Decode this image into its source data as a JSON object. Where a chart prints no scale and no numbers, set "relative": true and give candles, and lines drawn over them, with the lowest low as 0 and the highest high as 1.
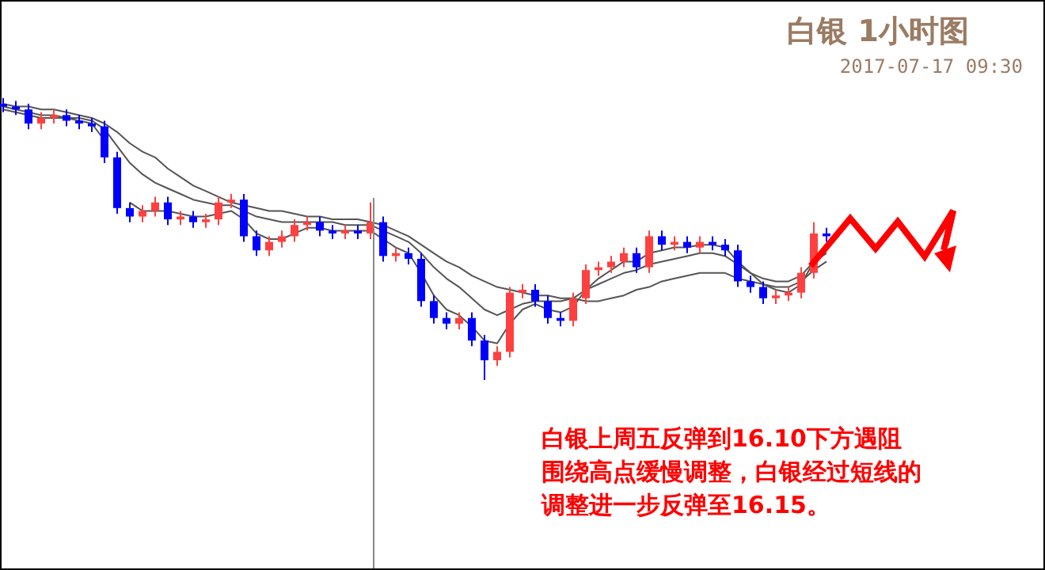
{
  "chart_data": {
    "type": "candlestick",
    "title": "白银 1小时图",
    "subtitle": "2017-07-17 09:30",
    "relative": true,
    "annotations": [
      "白银上周五反弹到16.10下方遇阻围绕高点缓慢调整，白银经过短线的调整进一步反弹至16.15。"
    ],
    "categories": [
      null,
      null,
      null,
      null,
      null,
      null,
      null,
      null,
      null,
      null,
      null,
      null,
      null,
      null,
      null,
      null,
      null,
      null,
      null,
      null,
      null,
      null,
      null,
      null,
      null,
      null,
      null,
      null,
      null,
      null,
      null,
      null,
      null,
      null,
      null,
      null,
      null,
      null,
      null,
      null,
      null,
      null,
      null,
      null,
      null,
      null,
      null,
      null,
      null,
      null,
      null,
      null,
      null,
      null,
      null,
      null,
      null,
      null,
      null,
      null,
      null,
      null,
      null,
      null,
      null,
      null
    ],
    "ohlc": [
      [
        0.98,
        1.0,
        0.95,
        0.97
      ],
      [
        0.97,
        0.99,
        0.94,
        0.96
      ],
      [
        0.96,
        0.98,
        0.89,
        0.91
      ],
      [
        0.91,
        0.95,
        0.89,
        0.93
      ],
      [
        0.93,
        0.96,
        0.91,
        0.94
      ],
      [
        0.94,
        0.96,
        0.9,
        0.92
      ],
      [
        0.92,
        0.94,
        0.89,
        0.91
      ],
      [
        0.91,
        0.93,
        0.88,
        0.9
      ],
      [
        0.9,
        0.92,
        0.77,
        0.79
      ],
      [
        0.79,
        0.81,
        0.59,
        0.61
      ],
      [
        0.61,
        0.63,
        0.56,
        0.58
      ],
      [
        0.58,
        0.62,
        0.56,
        0.6
      ],
      [
        0.6,
        0.65,
        0.58,
        0.63
      ],
      [
        0.63,
        0.65,
        0.55,
        0.57
      ],
      [
        0.57,
        0.6,
        0.55,
        0.58
      ],
      [
        0.58,
        0.6,
        0.54,
        0.56
      ],
      [
        0.56,
        0.59,
        0.54,
        0.57
      ],
      [
        0.57,
        0.65,
        0.55,
        0.63
      ],
      [
        0.63,
        0.66,
        0.61,
        0.64
      ],
      [
        0.64,
        0.66,
        0.49,
        0.51
      ],
      [
        0.51,
        0.53,
        0.44,
        0.46
      ],
      [
        0.46,
        0.51,
        0.44,
        0.49
      ],
      [
        0.49,
        0.53,
        0.47,
        0.51
      ],
      [
        0.51,
        0.57,
        0.49,
        0.55
      ],
      [
        0.55,
        0.58,
        0.53,
        0.56
      ],
      [
        0.56,
        0.58,
        0.51,
        0.53
      ],
      [
        0.53,
        0.55,
        0.5,
        0.52
      ],
      [
        0.52,
        0.55,
        0.5,
        0.53
      ],
      [
        0.53,
        0.55,
        0.5,
        0.52
      ],
      [
        0.52,
        0.63,
        0.5,
        0.56
      ],
      [
        0.56,
        0.58,
        0.42,
        0.44
      ],
      [
        0.44,
        0.47,
        0.42,
        0.45
      ],
      [
        0.45,
        0.47,
        0.41,
        0.43
      ],
      [
        0.43,
        0.45,
        0.26,
        0.28
      ],
      [
        0.28,
        0.3,
        0.2,
        0.22
      ],
      [
        0.22,
        0.24,
        0.18,
        0.2
      ],
      [
        0.2,
        0.24,
        0.18,
        0.22
      ],
      [
        0.22,
        0.24,
        0.12,
        0.14
      ],
      [
        0.14,
        0.16,
        0.0,
        0.07
      ],
      [
        0.07,
        0.12,
        0.05,
        0.1
      ],
      [
        0.1,
        0.33,
        0.08,
        0.31
      ],
      [
        0.31,
        0.34,
        0.29,
        0.32
      ],
      [
        0.32,
        0.34,
        0.26,
        0.28
      ],
      [
        0.28,
        0.3,
        0.2,
        0.22
      ],
      [
        0.22,
        0.24,
        0.19,
        0.21
      ],
      [
        0.21,
        0.31,
        0.19,
        0.29
      ],
      [
        0.29,
        0.41,
        0.27,
        0.39
      ],
      [
        0.39,
        0.42,
        0.37,
        0.4
      ],
      [
        0.4,
        0.44,
        0.38,
        0.42
      ],
      [
        0.42,
        0.47,
        0.4,
        0.45
      ],
      [
        0.45,
        0.47,
        0.38,
        0.4
      ],
      [
        0.4,
        0.53,
        0.38,
        0.51
      ],
      [
        0.51,
        0.53,
        0.46,
        0.48
      ],
      [
        0.48,
        0.51,
        0.46,
        0.49
      ],
      [
        0.49,
        0.51,
        0.45,
        0.47
      ],
      [
        0.47,
        0.51,
        0.45,
        0.49
      ],
      [
        0.49,
        0.51,
        0.46,
        0.48
      ],
      [
        0.48,
        0.5,
        0.44,
        0.46
      ],
      [
        0.46,
        0.48,
        0.33,
        0.35
      ],
      [
        0.35,
        0.37,
        0.31,
        0.33
      ],
      [
        0.33,
        0.35,
        0.27,
        0.29
      ],
      [
        0.29,
        0.32,
        0.27,
        0.3
      ],
      [
        0.3,
        0.33,
        0.28,
        0.31
      ],
      [
        0.31,
        0.4,
        0.29,
        0.38
      ],
      [
        0.38,
        0.56,
        0.36,
        0.52
      ],
      [
        0.52,
        0.54,
        0.49,
        0.51
      ]
    ],
    "colors": [
      "#0000ff",
      "#0000ff",
      "#0000ff",
      "#ff4040",
      "#ff4040",
      "#0000ff",
      "#0000ff",
      "#0000ff",
      "#0000ff",
      "#0000ff",
      "#0000ff",
      "#ff4040",
      "#ff4040",
      "#0000ff",
      "#ff4040",
      "#0000ff",
      "#ff4040",
      "#ff4040",
      "#ff4040",
      "#0000ff",
      "#0000ff",
      "#ff4040",
      "#ff4040",
      "#ff4040",
      "#ff4040",
      "#0000ff",
      "#0000ff",
      "#ff4040",
      "#0000ff",
      "#ff4040",
      "#0000ff",
      "#ff4040",
      "#0000ff",
      "#0000ff",
      "#0000ff",
      "#0000ff",
      "#ff4040",
      "#0000ff",
      "#0000ff",
      "#ff4040",
      "#ff4040",
      "#ff4040",
      "#0000ff",
      "#0000ff",
      "#0000ff",
      "#ff4040",
      "#ff4040",
      "#ff4040",
      "#ff4040",
      "#ff4040",
      "#0000ff",
      "#ff4040",
      "#0000ff",
      "#ff4040",
      "#0000ff",
      "#ff4040",
      "#0000ff",
      "#0000ff",
      "#0000ff",
      "#0000ff",
      "#0000ff",
      "#ff4040",
      "#ff4040",
      "#ff4040",
      "#ff4040",
      "#0000ff"
    ],
    "series": [
      {
        "type": "line",
        "color": "#555555",
        "values": [
          0.96,
          0.95,
          0.94,
          0.93,
          0.93,
          0.93,
          0.92,
          0.91,
          0.85,
          null,
          0.63,
          0.6,
          0.6,
          0.6,
          0.59,
          0.58,
          0.58,
          0.59,
          0.6,
          0.57,
          0.52,
          0.5,
          0.5,
          0.52,
          0.54,
          0.54,
          0.53,
          0.53,
          0.53,
          0.53,
          0.5,
          0.47,
          0.45,
          0.38,
          0.3,
          0.25,
          0.23,
          0.19,
          0.14,
          0.13,
          0.2,
          0.25,
          0.27,
          0.25,
          0.24,
          0.26,
          0.32,
          0.36,
          0.39,
          0.42,
          0.42,
          0.45,
          0.46,
          0.47,
          0.47,
          0.48,
          0.48,
          0.47,
          0.42,
          0.38,
          0.34,
          0.32,
          0.31,
          0.34,
          0.42,
          0.46
        ]
      },
      {
        "type": "line",
        "color": "#555555",
        "values": [
          0.97,
          0.96,
          0.95,
          0.94,
          0.94,
          0.93,
          0.93,
          0.92,
          0.89,
          0.83,
          0.77,
          0.73,
          0.7,
          0.68,
          0.66,
          0.64,
          0.63,
          0.62,
          0.62,
          0.6,
          0.58,
          0.57,
          0.56,
          0.56,
          0.56,
          0.56,
          0.56,
          0.55,
          0.55,
          0.55,
          0.53,
          0.51,
          0.49,
          0.45,
          0.4,
          0.36,
          0.33,
          0.29,
          0.25,
          0.23,
          0.25,
          0.27,
          0.28,
          0.28,
          0.28,
          0.29,
          0.32,
          0.34,
          0.36,
          0.38,
          0.39,
          0.41,
          0.42,
          0.43,
          0.44,
          0.45,
          0.45,
          0.44,
          0.41,
          0.38,
          0.36,
          0.35,
          0.35,
          0.37,
          0.42,
          0.45
        ]
      },
      {
        "type": "line",
        "color": "#555555",
        "values": [
          0.98,
          0.97,
          0.97,
          0.96,
          0.96,
          0.95,
          0.94,
          0.93,
          0.91,
          0.88,
          0.84,
          0.81,
          0.79,
          0.75,
          0.72,
          0.69,
          0.67,
          0.65,
          0.63,
          0.62,
          0.61,
          0.6,
          0.6,
          0.59,
          0.58,
          0.58,
          0.57,
          0.57,
          0.57,
          0.56,
          0.55,
          0.53,
          0.51,
          0.48,
          0.45,
          0.42,
          0.4,
          0.37,
          0.35,
          0.33,
          0.32,
          0.31,
          0.3,
          0.3,
          0.29,
          0.29,
          0.28,
          0.28,
          0.29,
          0.3,
          0.32,
          0.33,
          0.35,
          0.36,
          0.37,
          0.38,
          0.38,
          0.38,
          0.36,
          0.35,
          0.34,
          0.33,
          0.33,
          0.35,
          0.39,
          0.42
        ]
      }
    ]
  }
}
